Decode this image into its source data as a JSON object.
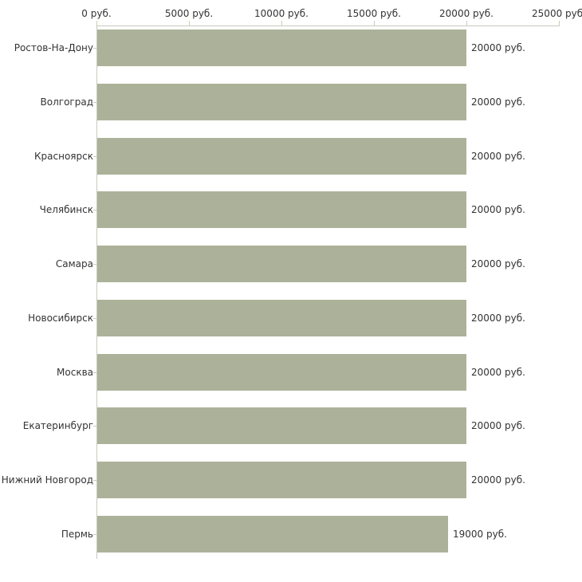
{
  "colors": {
    "bar": "#acb299",
    "axis_line": "#c9c9c0",
    "tick": "#cdcdb2",
    "text": "#333333",
    "background": "#ffffff"
  },
  "chart_data": {
    "type": "bar",
    "orientation": "horizontal",
    "title": "",
    "xlabel": "",
    "ylabel": "",
    "xlim": [
      0,
      25000
    ],
    "grid": false,
    "legend": false,
    "x_tick_values": [
      0,
      5000,
      10000,
      15000,
      20000,
      25000
    ],
    "x_tick_labels": [
      "0 руб.",
      "5000 руб.",
      "10000 руб.",
      "15000 руб.",
      "20000 руб.",
      "25000 руб."
    ],
    "categories": [
      "Ростов-На-Дону",
      "Волгоград",
      "Красноярск",
      "Челябинск",
      "Самара",
      "Новосибирск",
      "Москва",
      "Екатеринбург",
      "Нижний Новгород",
      "Пермь"
    ],
    "values": [
      20000,
      20000,
      20000,
      20000,
      20000,
      20000,
      20000,
      20000,
      20000,
      19000
    ],
    "value_labels": [
      "20000 руб.",
      "20000 руб.",
      "20000 руб.",
      "20000 руб.",
      "20000 руб.",
      "20000 руб.",
      "20000 руб.",
      "20000 руб.",
      "20000 руб.",
      "19000 руб."
    ]
  }
}
